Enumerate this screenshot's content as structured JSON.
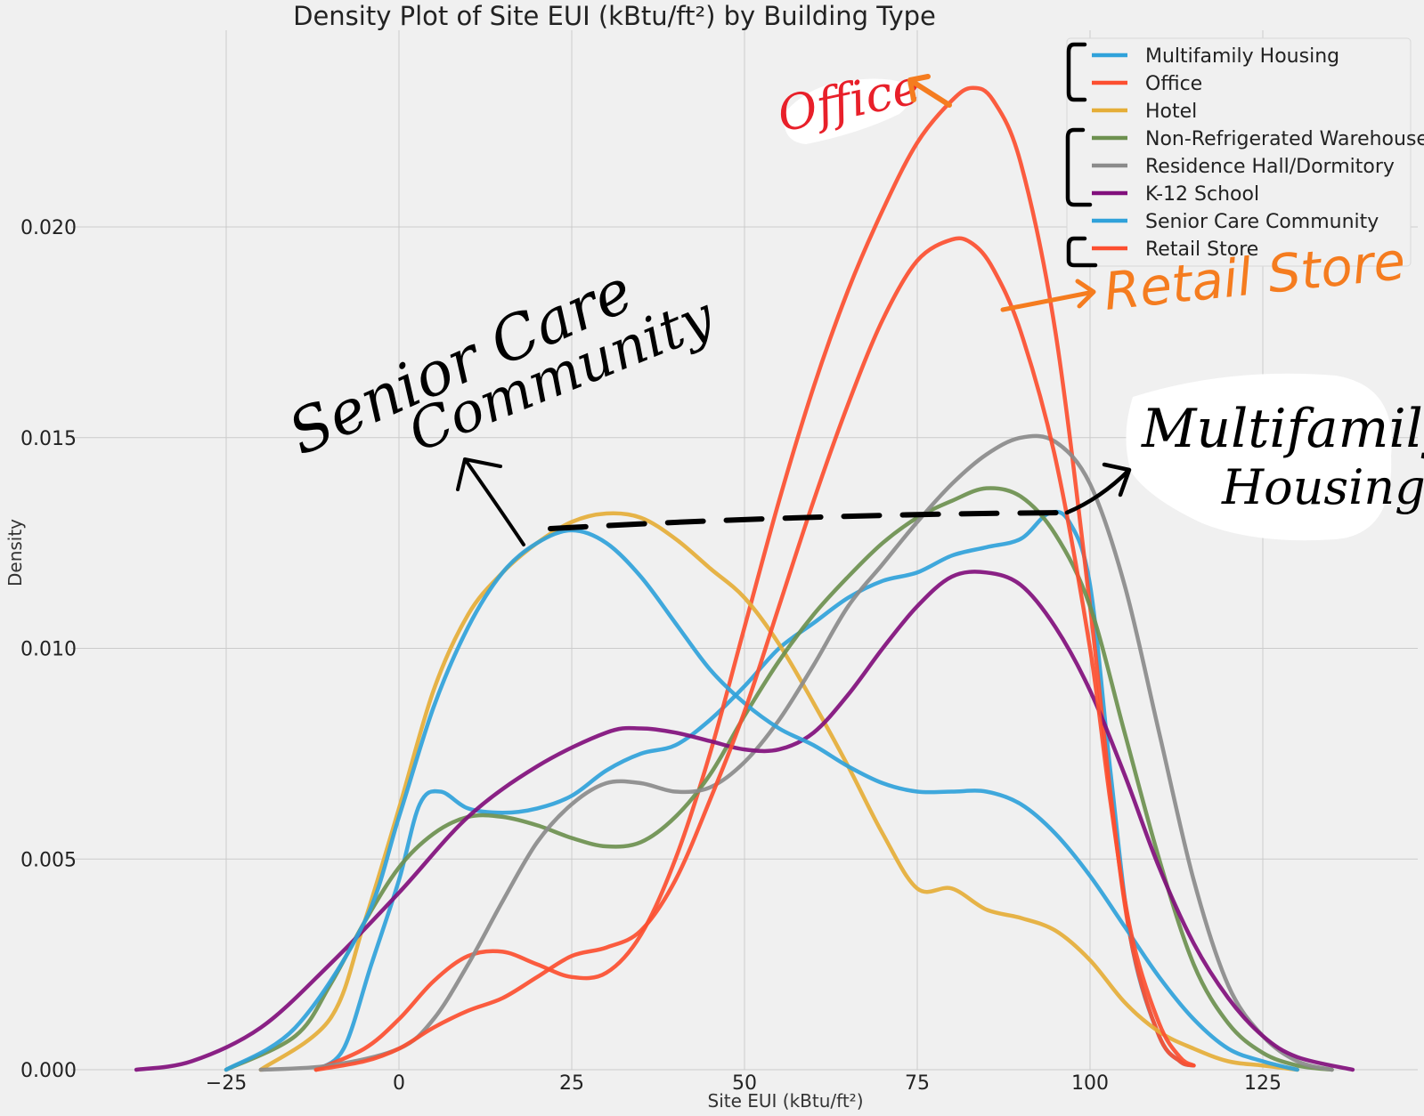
{
  "chart_data": {
    "type": "line",
    "title": "Density Plot of Site EUI (kBtu/ft²) by Building Type",
    "xlabel": "Site EUI (kBtu/ft²)",
    "ylabel": "Density",
    "xlim": [
      -43,
      148
    ],
    "ylim": [
      0,
      0.0255
    ],
    "x_ticks": [
      -25,
      0,
      25,
      50,
      75,
      100,
      125
    ],
    "x_tick_labels": [
      "−25",
      "0",
      "25",
      "50",
      "75",
      "100",
      "125"
    ],
    "y_ticks": [
      0,
      0.005,
      0.01,
      0.015,
      0.02
    ],
    "y_tick_labels": [
      "0.000",
      "0.005",
      "0.010",
      "0.015",
      "0.020"
    ],
    "grid": true,
    "legend_position": "top-right",
    "series": [
      {
        "name": "Multifamily Housing",
        "color": "#30a2da",
        "points": [
          [
            -12,
            0
          ],
          [
            -8,
            0.0005
          ],
          [
            -4,
            0.0025
          ],
          [
            0,
            0.0045
          ],
          [
            3,
            0.0063
          ],
          [
            6,
            0.0066
          ],
          [
            10,
            0.0062
          ],
          [
            15,
            0.0061
          ],
          [
            20,
            0.0062
          ],
          [
            25,
            0.0065
          ],
          [
            30,
            0.0071
          ],
          [
            35,
            0.0075
          ],
          [
            40,
            0.0077
          ],
          [
            45,
            0.0083
          ],
          [
            50,
            0.0091
          ],
          [
            55,
            0.01
          ],
          [
            60,
            0.0106
          ],
          [
            65,
            0.0112
          ],
          [
            70,
            0.0116
          ],
          [
            75,
            0.0118
          ],
          [
            80,
            0.0122
          ],
          [
            85,
            0.0124
          ],
          [
            90,
            0.0126
          ],
          [
            94,
            0.0132
          ],
          [
            97,
            0.013
          ],
          [
            100,
            0.0115
          ],
          [
            103,
            0.007
          ],
          [
            106,
            0.003
          ],
          [
            110,
            0.0008
          ],
          [
            113,
            0.0002
          ],
          [
            115,
            0.0001
          ]
        ]
      },
      {
        "name": "Office",
        "color": "#fc4f30",
        "points": [
          [
            -12,
            0
          ],
          [
            -5,
            0.0005
          ],
          [
            0,
            0.0012
          ],
          [
            5,
            0.0021
          ],
          [
            10,
            0.0027
          ],
          [
            15,
            0.0028
          ],
          [
            20,
            0.0025
          ],
          [
            25,
            0.0022
          ],
          [
            30,
            0.0023
          ],
          [
            35,
            0.0032
          ],
          [
            40,
            0.005
          ],
          [
            45,
            0.0075
          ],
          [
            50,
            0.0105
          ],
          [
            55,
            0.0135
          ],
          [
            60,
            0.0162
          ],
          [
            65,
            0.0185
          ],
          [
            70,
            0.0204
          ],
          [
            75,
            0.022
          ],
          [
            80,
            0.023
          ],
          [
            83,
            0.0233
          ],
          [
            86,
            0.023
          ],
          [
            90,
            0.0215
          ],
          [
            95,
            0.0175
          ],
          [
            100,
            0.011
          ],
          [
            103,
            0.0065
          ],
          [
            106,
            0.003
          ],
          [
            110,
            0.0008
          ],
          [
            113,
            0.0002
          ],
          [
            115,
            0.0001
          ]
        ]
      },
      {
        "name": "Hotel",
        "color": "#e5ae38",
        "points": [
          [
            -20,
            0
          ],
          [
            -10,
            0.0012
          ],
          [
            -5,
            0.0035
          ],
          [
            0,
            0.0062
          ],
          [
            5,
            0.009
          ],
          [
            10,
            0.0108
          ],
          [
            15,
            0.0118
          ],
          [
            20,
            0.0125
          ],
          [
            25,
            0.013
          ],
          [
            30,
            0.0132
          ],
          [
            35,
            0.0131
          ],
          [
            40,
            0.0126
          ],
          [
            45,
            0.0119
          ],
          [
            50,
            0.0112
          ],
          [
            55,
            0.0101
          ],
          [
            60,
            0.0087
          ],
          [
            65,
            0.0072
          ],
          [
            70,
            0.0056
          ],
          [
            75,
            0.0043
          ],
          [
            80,
            0.0043
          ],
          [
            85,
            0.0038
          ],
          [
            90,
            0.0036
          ],
          [
            95,
            0.0033
          ],
          [
            100,
            0.0026
          ],
          [
            105,
            0.0016
          ],
          [
            110,
            0.0009
          ],
          [
            115,
            0.0005
          ],
          [
            120,
            0.0002
          ],
          [
            125,
            0.0001
          ],
          [
            130,
            0
          ]
        ]
      },
      {
        "name": "Non-Refrigerated Warehouse",
        "color": "#6d904f",
        "points": [
          [
            -25,
            0
          ],
          [
            -15,
            0.0008
          ],
          [
            -10,
            0.002
          ],
          [
            -5,
            0.0035
          ],
          [
            0,
            0.0048
          ],
          [
            5,
            0.0056
          ],
          [
            10,
            0.006
          ],
          [
            15,
            0.006
          ],
          [
            20,
            0.0058
          ],
          [
            25,
            0.0055
          ],
          [
            30,
            0.0053
          ],
          [
            35,
            0.0054
          ],
          [
            40,
            0.006
          ],
          [
            45,
            0.007
          ],
          [
            50,
            0.0084
          ],
          [
            55,
            0.0097
          ],
          [
            60,
            0.0108
          ],
          [
            65,
            0.0117
          ],
          [
            70,
            0.0125
          ],
          [
            75,
            0.0131
          ],
          [
            80,
            0.0135
          ],
          [
            85,
            0.0138
          ],
          [
            90,
            0.0136
          ],
          [
            95,
            0.0127
          ],
          [
            100,
            0.011
          ],
          [
            105,
            0.008
          ],
          [
            110,
            0.005
          ],
          [
            115,
            0.0025
          ],
          [
            120,
            0.0011
          ],
          [
            125,
            0.0004
          ],
          [
            130,
            0.0001
          ],
          [
            135,
            0
          ]
        ]
      },
      {
        "name": "Residence Hall/Dormitory",
        "color": "#8b8b8b",
        "points": [
          [
            -20,
            0
          ],
          [
            -10,
            0.0001
          ],
          [
            0,
            0.0005
          ],
          [
            5,
            0.0012
          ],
          [
            10,
            0.0025
          ],
          [
            15,
            0.004
          ],
          [
            20,
            0.0054
          ],
          [
            25,
            0.0063
          ],
          [
            30,
            0.0068
          ],
          [
            35,
            0.0068
          ],
          [
            40,
            0.0066
          ],
          [
            45,
            0.0067
          ],
          [
            50,
            0.0073
          ],
          [
            55,
            0.0083
          ],
          [
            60,
            0.0096
          ],
          [
            65,
            0.011
          ],
          [
            70,
            0.012
          ],
          [
            75,
            0.013
          ],
          [
            80,
            0.0139
          ],
          [
            85,
            0.0146
          ],
          [
            90,
            0.015
          ],
          [
            95,
            0.0149
          ],
          [
            100,
            0.0139
          ],
          [
            105,
            0.0115
          ],
          [
            110,
            0.008
          ],
          [
            115,
            0.0045
          ],
          [
            120,
            0.002
          ],
          [
            125,
            0.0008
          ],
          [
            130,
            0.0002
          ],
          [
            135,
            0
          ]
        ]
      },
      {
        "name": "K-12 School",
        "color": "#810f7c",
        "points": [
          [
            -38,
            0
          ],
          [
            -30,
            0.0002
          ],
          [
            -20,
            0.001
          ],
          [
            -10,
            0.0025
          ],
          [
            0,
            0.0042
          ],
          [
            10,
            0.006
          ],
          [
            20,
            0.0072
          ],
          [
            30,
            0.008
          ],
          [
            35,
            0.0081
          ],
          [
            40,
            0.008
          ],
          [
            45,
            0.0078
          ],
          [
            50,
            0.0076
          ],
          [
            55,
            0.0076
          ],
          [
            60,
            0.008
          ],
          [
            65,
            0.0089
          ],
          [
            70,
            0.01
          ],
          [
            75,
            0.011
          ],
          [
            80,
            0.0117
          ],
          [
            85,
            0.0118
          ],
          [
            90,
            0.0115
          ],
          [
            95,
            0.0105
          ],
          [
            100,
            0.009
          ],
          [
            105,
            0.007
          ],
          [
            110,
            0.0048
          ],
          [
            115,
            0.003
          ],
          [
            120,
            0.0017
          ],
          [
            125,
            0.0008
          ],
          [
            130,
            0.0003
          ],
          [
            138,
            0
          ]
        ]
      },
      {
        "name": "Senior Care Community",
        "color": "#30a2da",
        "points": [
          [
            -25,
            0
          ],
          [
            -15,
            0.001
          ],
          [
            -5,
            0.0035
          ],
          [
            0,
            0.006
          ],
          [
            5,
            0.0086
          ],
          [
            10,
            0.0105
          ],
          [
            15,
            0.0118
          ],
          [
            20,
            0.0125
          ],
          [
            25,
            0.0128
          ],
          [
            30,
            0.0125
          ],
          [
            35,
            0.0117
          ],
          [
            40,
            0.0106
          ],
          [
            45,
            0.0095
          ],
          [
            50,
            0.0087
          ],
          [
            55,
            0.0081
          ],
          [
            60,
            0.0077
          ],
          [
            65,
            0.0072
          ],
          [
            70,
            0.0068
          ],
          [
            75,
            0.0066
          ],
          [
            80,
            0.0066
          ],
          [
            85,
            0.0066
          ],
          [
            90,
            0.0063
          ],
          [
            95,
            0.0056
          ],
          [
            100,
            0.0046
          ],
          [
            105,
            0.0034
          ],
          [
            110,
            0.0022
          ],
          [
            115,
            0.0012
          ],
          [
            120,
            0.0005
          ],
          [
            125,
            0.0002
          ],
          [
            130,
            0
          ]
        ]
      },
      {
        "name": "Retail Store",
        "color": "#fc4f30",
        "points": [
          [
            -12,
            0
          ],
          [
            -5,
            0.0002
          ],
          [
            0,
            0.0005
          ],
          [
            5,
            0.001
          ],
          [
            10,
            0.0014
          ],
          [
            15,
            0.0017
          ],
          [
            20,
            0.0022
          ],
          [
            25,
            0.0027
          ],
          [
            30,
            0.0029
          ],
          [
            35,
            0.0033
          ],
          [
            40,
            0.0045
          ],
          [
            45,
            0.0064
          ],
          [
            50,
            0.0085
          ],
          [
            55,
            0.011
          ],
          [
            60,
            0.0135
          ],
          [
            65,
            0.0158
          ],
          [
            70,
            0.0178
          ],
          [
            75,
            0.0192
          ],
          [
            80,
            0.0197
          ],
          [
            83,
            0.0196
          ],
          [
            86,
            0.019
          ],
          [
            90,
            0.0175
          ],
          [
            95,
            0.0145
          ],
          [
            100,
            0.01
          ],
          [
            103,
            0.0063
          ],
          [
            106,
            0.0032
          ],
          [
            110,
            0.0011
          ],
          [
            113,
            0.0003
          ],
          [
            115,
            0.0001
          ]
        ]
      }
    ]
  },
  "annotations": {
    "office": "Office",
    "retail_store": "Retail Store",
    "senior_care_line1": "Senior Care",
    "senior_care_line2": "Community",
    "multifamily_line1": "Multifamily",
    "multifamily_line2": "Housing",
    "office_color": "#e8202a",
    "arrow_color": "#f57c1f",
    "retail_color": "#f57c1f",
    "ink_color": "#000000"
  }
}
